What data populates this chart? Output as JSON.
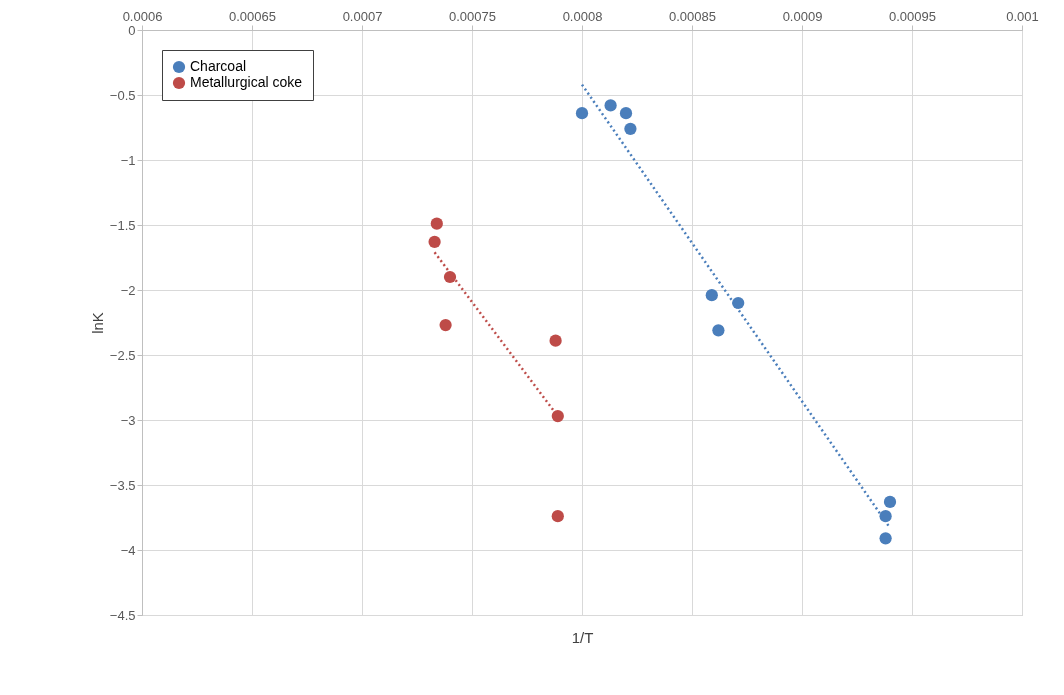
{
  "chart_data": {
    "type": "scatter",
    "xlabel": "1/T",
    "ylabel": "lnK",
    "xlim": [
      0.0006,
      0.001
    ],
    "xticks": [
      0.0006,
      0.00065,
      0.0007,
      0.00075,
      0.0008,
      0.00085,
      0.0009,
      0.00095,
      0.001
    ],
    "ylim": [
      -4.5,
      0
    ],
    "yticks": [
      0,
      -0.5,
      -1,
      -1.5,
      -2,
      -2.5,
      -3,
      -3.5,
      -4,
      -4.5
    ],
    "grid": true,
    "legend": "top left",
    "marker": "circle",
    "series": [
      {
        "name": "Charcoal",
        "color": "#4a7ebb",
        "x": [
          0.0008,
          0.000813,
          0.00082,
          0.000822,
          0.000859,
          0.000871,
          0.000862,
          0.00094,
          0.000938,
          0.000938
        ],
        "values": [
          -0.64,
          -0.58,
          -0.64,
          -0.76,
          -2.04,
          -2.1,
          -2.31,
          -3.63,
          -3.74,
          -3.91
        ]
      },
      {
        "name": "Metallurgical coke",
        "color": "#be4b48",
        "x": [
          0.000734,
          0.000733,
          0.00074,
          0.000738,
          0.000788,
          0.000789,
          0.000789
        ],
        "values": [
          -1.49,
          -1.63,
          -1.9,
          -2.27,
          -2.39,
          -2.97,
          -3.74
        ]
      },
      {
        "type": "line",
        "line_style": "dotted",
        "marker": "none",
        "color": "#4a7ebb",
        "x": [
          0.0008,
          0.00094
        ],
        "values": [
          -0.42,
          -3.83
        ]
      },
      {
        "type": "line",
        "line_style": "dotted",
        "marker": "none",
        "color": "#be4b48",
        "x": [
          0.000733,
          0.000789
        ],
        "values": [
          -1.71,
          -2.97
        ]
      }
    ]
  }
}
